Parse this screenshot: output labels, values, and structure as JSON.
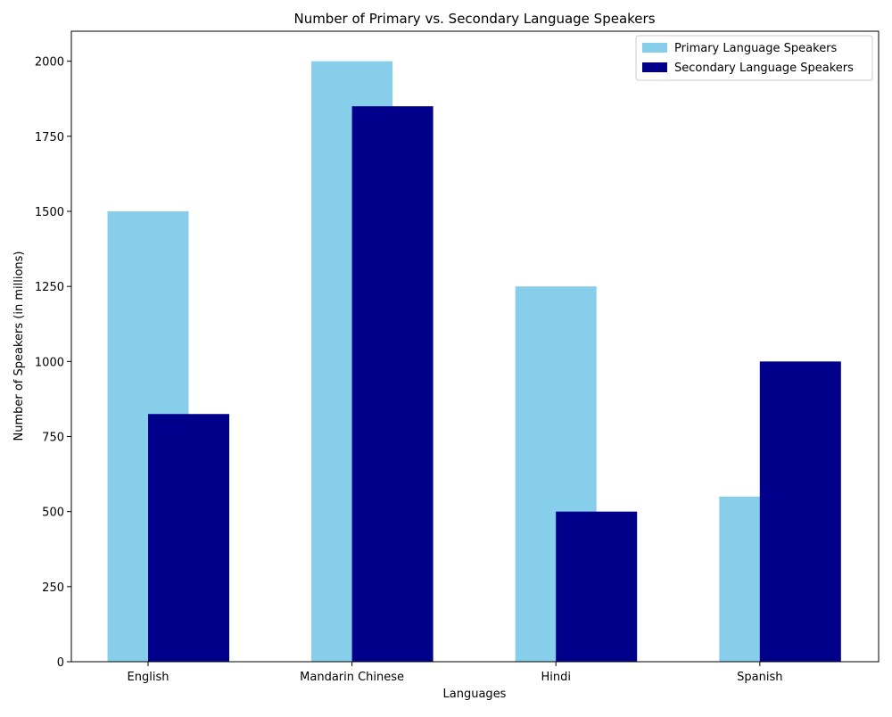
{
  "chart_data": {
    "type": "bar",
    "title": "Number of Primary vs. Secondary Language Speakers",
    "xlabel": "Languages",
    "ylabel": "Number of Speakers (in millions)",
    "categories": [
      "English",
      "Mandarin Chinese",
      "Hindi",
      "Spanish"
    ],
    "series": [
      {
        "name": "Primary Language Speakers",
        "color": "#87ceeb",
        "values": [
          1500,
          2000,
          1250,
          550
        ]
      },
      {
        "name": "Secondary Language Speakers",
        "color": "#00008b",
        "values": [
          825,
          1850,
          500,
          1000
        ]
      }
    ],
    "ylim": [
      0,
      2100
    ],
    "yticks": [
      0,
      250,
      500,
      750,
      1000,
      1250,
      1500,
      1750,
      2000
    ],
    "grid": false,
    "legend_position": "top-right"
  }
}
